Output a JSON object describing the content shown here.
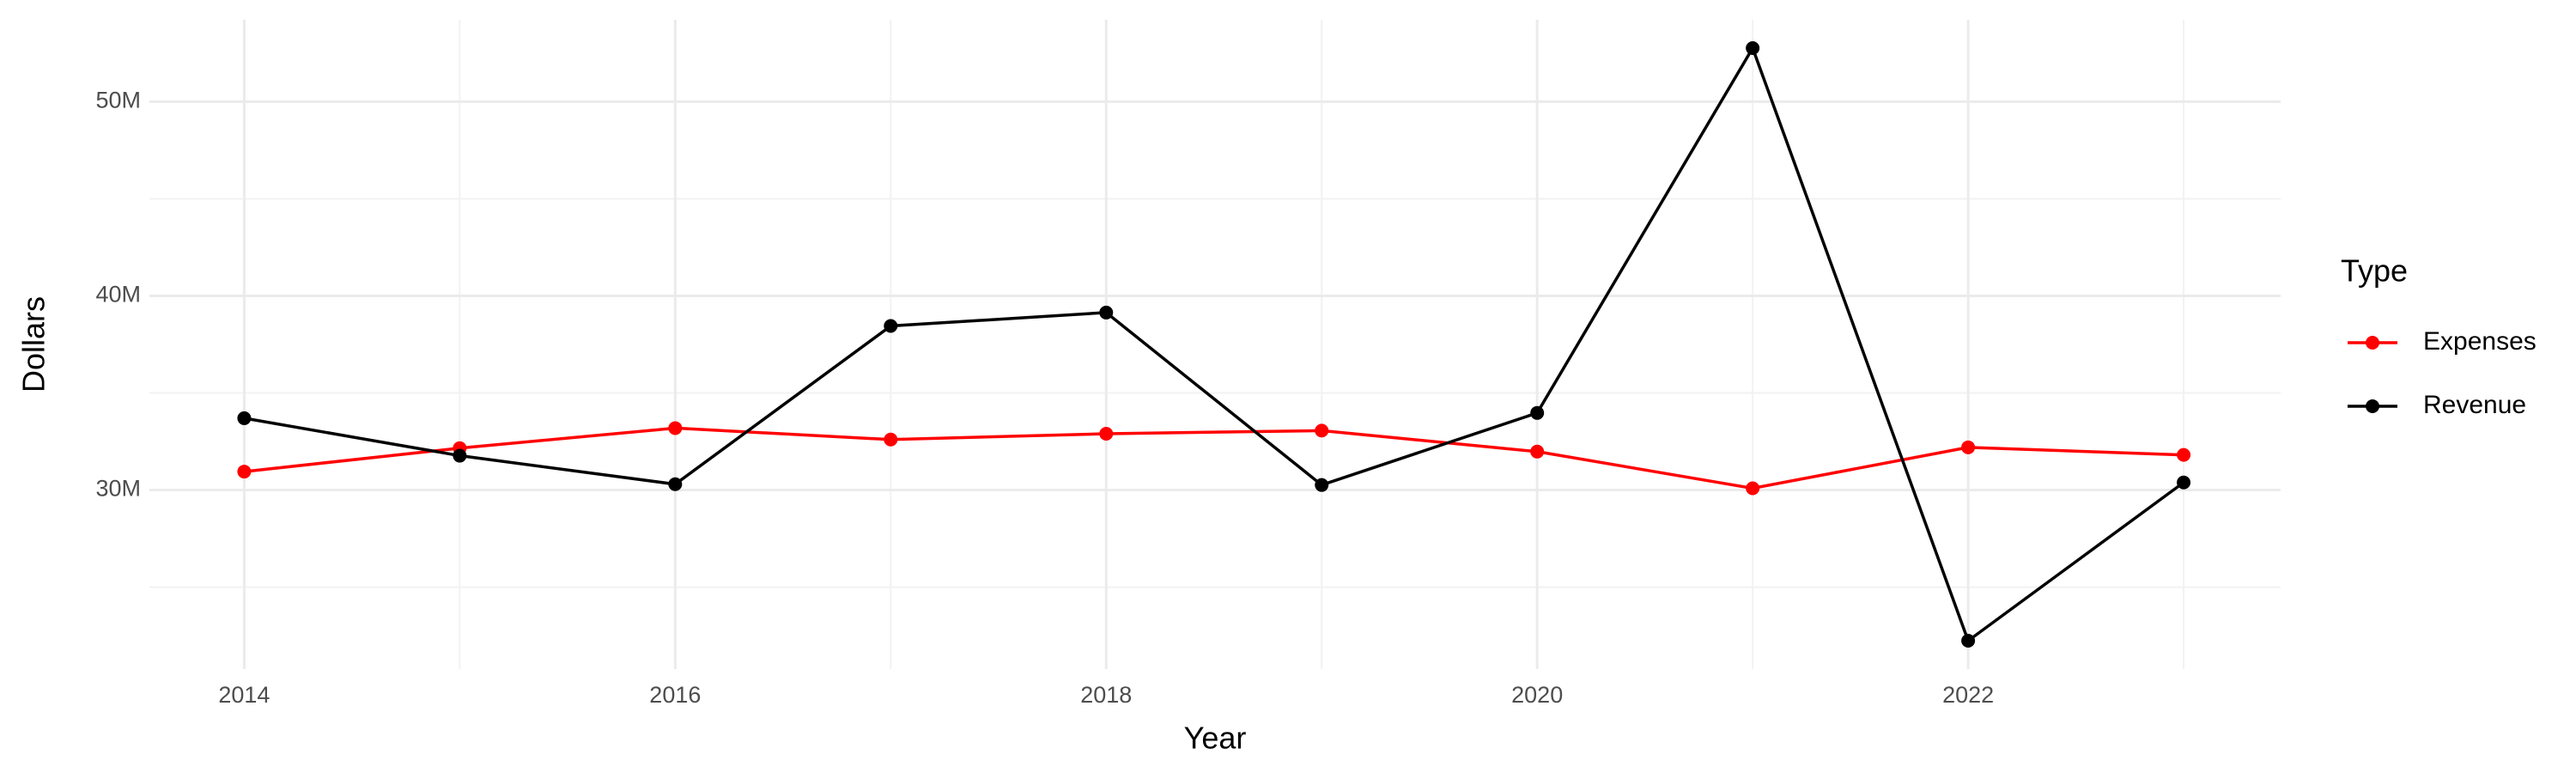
{
  "chart_data": {
    "type": "line",
    "x_label": "Year",
    "y_label": "Dollars",
    "legend_title": "Type",
    "x": [
      2014,
      2015,
      2016,
      2017,
      2018,
      2019,
      2020,
      2021,
      2022,
      2023
    ],
    "series": [
      {
        "name": "Expenses",
        "color": "#ff0000",
        "values": [
          30950000,
          32160000,
          33190000,
          32600000,
          32900000,
          33060000,
          31980000,
          30090000,
          32200000,
          31810000
        ]
      },
      {
        "name": "Revenue",
        "color": "#000000",
        "values": [
          33700000,
          31770000,
          30300000,
          38450000,
          39140000,
          30260000,
          33970000,
          52760000,
          22240000,
          30390000
        ]
      }
    ],
    "xlim": [
      2013.56,
      2023.45
    ],
    "xticks": [
      2014,
      2016,
      2018,
      2020,
      2022
    ],
    "ylim": [
      20780000,
      54220000
    ],
    "yticks": [
      {
        "value": 30000000,
        "label": "30M"
      },
      {
        "value": 40000000,
        "label": "40M"
      },
      {
        "value": 50000000,
        "label": "50M"
      }
    ],
    "grid": true,
    "legend_position": "right"
  }
}
